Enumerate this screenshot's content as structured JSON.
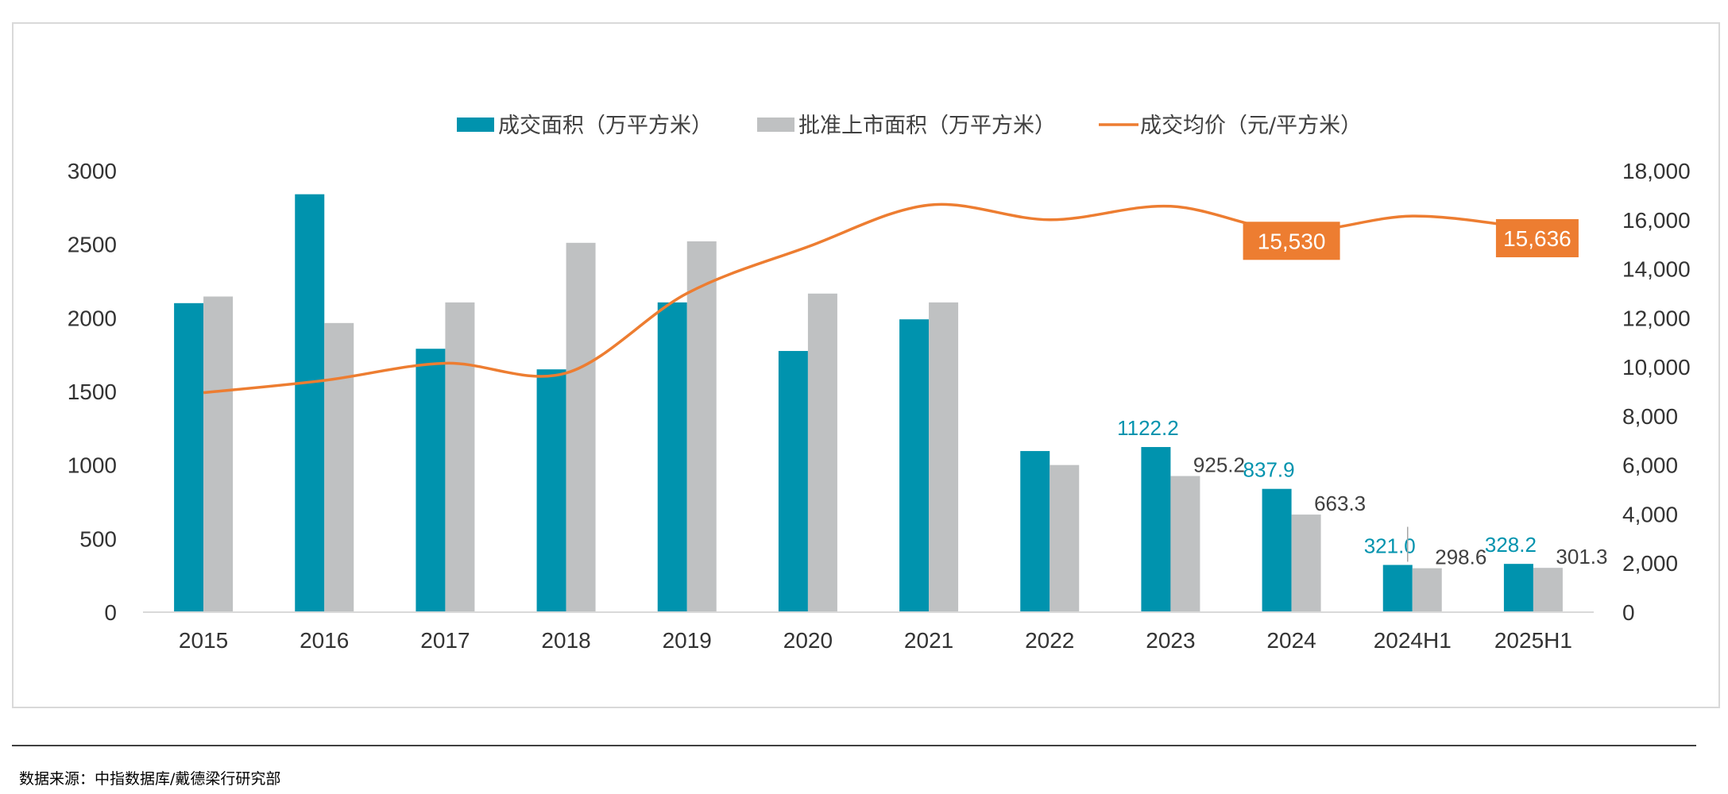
{
  "source_note": "数据来源：中指数据库/戴德梁行研究部",
  "chart_data": {
    "type": "bar",
    "categories": [
      "2015",
      "2016",
      "2017",
      "2018",
      "2019",
      "2020",
      "2021",
      "2022",
      "2023",
      "2024",
      "2024H1",
      "2025H1"
    ],
    "series": [
      {
        "name": "成交面积（万平方米）",
        "type": "bar",
        "axis": "left",
        "color": "#0093ae",
        "values": [
          2100,
          2840,
          1790,
          1650,
          2105,
          1775,
          1990,
          1095,
          1122.2,
          837.9,
          321.0,
          328.2
        ],
        "labels": [
          "",
          "",
          "",
          "",
          "",
          "",
          "",
          "",
          "1122.2",
          "837.9",
          "321.0",
          "328.2"
        ]
      },
      {
        "name": "批准上市面积（万平方米）",
        "type": "bar",
        "axis": "right-none",
        "color": "#bfc1c2",
        "values": [
          2145,
          1965,
          2105,
          2510,
          2520,
          2165,
          2105,
          1000,
          925.2,
          663.3,
          298.6,
          301.3
        ],
        "labels": [
          "",
          "",
          "",
          "",
          "",
          "",
          "",
          "",
          "925.2",
          "663.3",
          "298.6",
          "301.3"
        ]
      },
      {
        "name": "成交均价（元/平方米）",
        "type": "line",
        "axis": "right",
        "color": "#ed7d31",
        "values": [
          8950,
          9450,
          10150,
          9750,
          13000,
          14900,
          16600,
          16000,
          16550,
          15530,
          16150,
          15636
        ],
        "callouts": {
          "9": "15,530",
          "11": "15,636"
        }
      }
    ],
    "y_left": {
      "ylim": [
        0,
        3000
      ],
      "ticks": [
        "0",
        "500",
        "1000",
        "1500",
        "2000",
        "2500",
        "3000"
      ]
    },
    "y_right": {
      "ylim": [
        0,
        18000
      ],
      "ticks": [
        "0",
        "2,000",
        "4,000",
        "6,000",
        "8,000",
        "10,000",
        "12,000",
        "14,000",
        "16,000",
        "18,000"
      ]
    },
    "legend_position": "top",
    "grid": false,
    "colors": {
      "bar1": "#0093ae",
      "bar2": "#bfc1c2",
      "line": "#ed7d31",
      "callout_bg": "#ed7d31",
      "label1": "#0093ae",
      "label2": "#404040"
    }
  }
}
